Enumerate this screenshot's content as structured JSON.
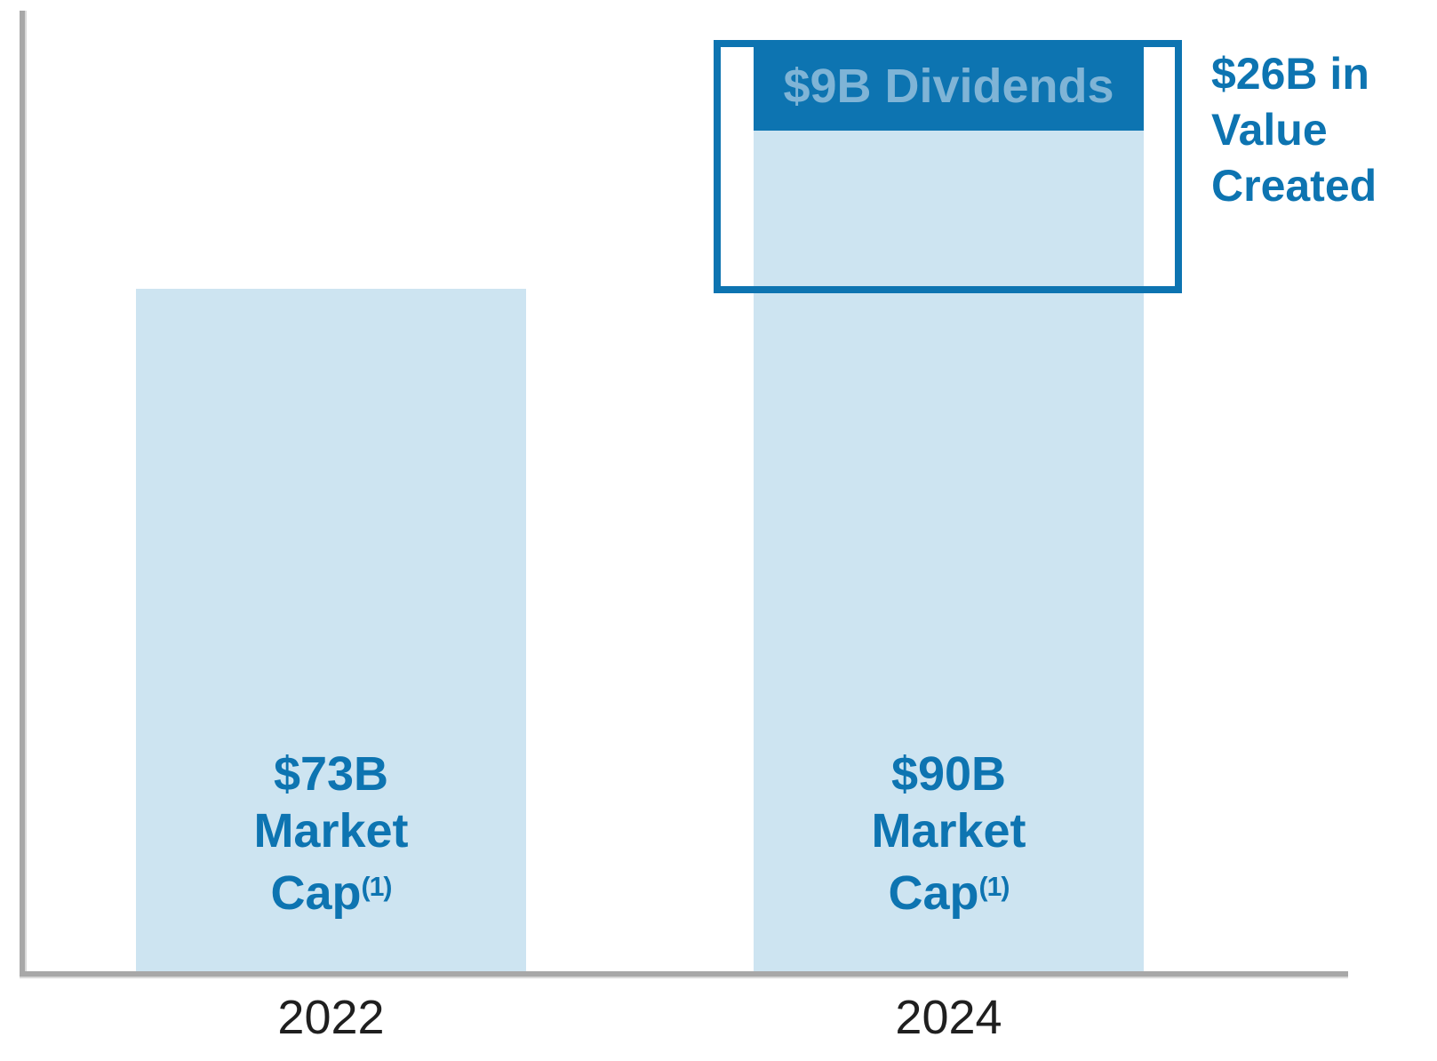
{
  "colors": {
    "accent_dark_blue": "#0d74b1",
    "bar_light_blue": "#cde4f1",
    "dividends_label_blue": "#7fb4d6",
    "axis_gray": "#a8a8a8",
    "year_label_color": "#1f1f1f"
  },
  "chart_data": {
    "type": "bar",
    "stacked": true,
    "units": "USD billions",
    "categories": [
      "2022",
      "2024"
    ],
    "series": [
      {
        "name": "Market Cap",
        "values": [
          73,
          90
        ],
        "color": "#cde4f1"
      },
      {
        "name": "Dividends",
        "values": [
          0,
          9
        ],
        "color": "#0d74b1"
      }
    ],
    "bar_labels": [
      "$73B Market Cap(1)",
      "$90B Market Cap(1)"
    ],
    "segment_label": "$9B Dividends",
    "annotation": "$26B in Value Created",
    "footnote_marker": "(1)",
    "layout": {
      "y_axis_visible": true,
      "y_ticks": [],
      "gridlines": false,
      "annotation_position": "right-of-2024-bar-top",
      "bracket_spans": "from 2024 total top down to 2022 bar top level"
    }
  },
  "bars": {
    "b2022": {
      "line1": "$73B",
      "line2": "Market",
      "line3": "Cap",
      "sup": "(1)"
    },
    "b2024": {
      "line1": "$90B",
      "line2": "Market",
      "line3": "Cap",
      "sup": "(1)",
      "dividends_label": "$9B Dividends"
    }
  },
  "annotation": {
    "line1": "$26B in",
    "line2": "Value",
    "line3": "Created"
  }
}
